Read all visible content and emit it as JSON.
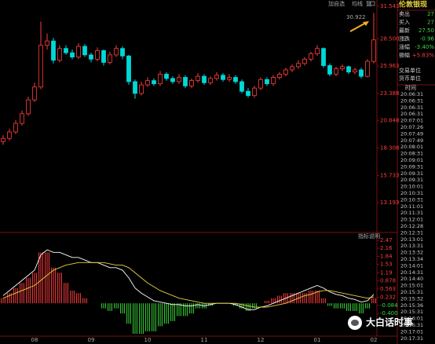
{
  "chart_data": {
    "type": "candlestick",
    "toolbar": [
      "加自选",
      "均线",
      "复"
    ],
    "annotation": "30.922",
    "up_color": "#ff3c3c",
    "down_color": "#00d8d8",
    "ylim": [
      10.48,
      32.13
    ],
    "yticks": [
      31.543,
      {
        "value": 28.5,
        "label": "28.500"
      },
      25.963,
      23.388,
      20.848,
      18.308,
      15.733,
      13.193
    ],
    "categories": [
      null,
      null,
      null,
      null,
      null,
      "08",
      null,
      null,
      null,
      null,
      null,
      null,
      null,
      null,
      "09",
      null,
      null,
      null,
      null,
      null,
      null,
      null,
      null,
      "10",
      null,
      null,
      null,
      null,
      null,
      null,
      null,
      null,
      "11",
      null,
      null,
      null,
      null,
      null,
      null,
      null,
      null,
      "12",
      null,
      null,
      null,
      null,
      null,
      null,
      null,
      null,
      "01",
      null,
      null,
      null,
      null,
      null,
      null,
      null,
      null,
      "02"
    ],
    "open": [
      18.9,
      19.2,
      19.8,
      20.6,
      21.5,
      22.8,
      24.0,
      27.9,
      28.3,
      26.5,
      27.6,
      27.2,
      26.8,
      27.8,
      27.0,
      26.6,
      27.4,
      26.3,
      27.0,
      27.6,
      26.9,
      24.5,
      23.4,
      24.2,
      24.6,
      24.3,
      25.2,
      24.8,
      24.5,
      24.9,
      24.1,
      24.6,
      25.0,
      24.4,
      24.8,
      25.1,
      24.7,
      24.9,
      24.5,
      23.6,
      23.2,
      23.9,
      24.7,
      24.3,
      24.9,
      25.2,
      25.6,
      25.9,
      26.2,
      26.6,
      27.1,
      27.6,
      26.0,
      25.2,
      25.7,
      25.9,
      25.4,
      25.6,
      25.0,
      26.4
    ],
    "high": [
      19.5,
      20.1,
      20.9,
      21.8,
      23.1,
      24.4,
      30.1,
      29.0,
      28.6,
      27.9,
      27.9,
      27.5,
      28.1,
      28.0,
      27.2,
      27.7,
      27.5,
      27.3,
      27.9,
      27.8,
      27.0,
      24.7,
      24.5,
      24.9,
      24.8,
      25.5,
      25.4,
      25.0,
      25.2,
      25.1,
      24.8,
      25.3,
      25.2,
      25.0,
      25.4,
      25.3,
      25.2,
      25.1,
      24.7,
      23.9,
      24.1,
      24.9,
      24.9,
      25.1,
      25.4,
      25.8,
      26.1,
      26.5,
      26.8,
      27.3,
      27.9,
      27.7,
      26.2,
      25.9,
      26.1,
      26.0,
      25.8,
      25.8,
      26.6,
      30.922
    ],
    "low": [
      18.6,
      19.0,
      19.6,
      20.4,
      21.3,
      22.6,
      23.8,
      27.5,
      26.2,
      26.3,
      27.0,
      26.6,
      26.6,
      26.8,
      26.3,
      26.4,
      26.0,
      26.1,
      26.8,
      26.6,
      24.2,
      22.9,
      23.2,
      24.0,
      24.1,
      24.1,
      24.6,
      24.3,
      24.3,
      23.9,
      23.9,
      24.4,
      24.2,
      24.2,
      24.6,
      24.5,
      24.5,
      24.3,
      23.4,
      23.0,
      23.0,
      23.7,
      24.1,
      24.1,
      24.7,
      25.0,
      25.4,
      25.7,
      26.0,
      26.4,
      26.9,
      25.8,
      25.0,
      25.0,
      25.5,
      25.2,
      25.2,
      24.8,
      24.9,
      26.2
    ],
    "close": [
      19.2,
      19.8,
      20.6,
      21.5,
      22.8,
      24.0,
      27.9,
      28.3,
      26.5,
      27.6,
      27.2,
      26.8,
      27.8,
      27.0,
      26.6,
      27.4,
      26.3,
      27.0,
      27.6,
      26.9,
      24.5,
      23.4,
      24.2,
      24.6,
      24.3,
      25.2,
      24.8,
      24.5,
      24.9,
      24.1,
      24.6,
      25.0,
      24.4,
      24.8,
      25.1,
      24.7,
      24.9,
      24.5,
      23.6,
      23.2,
      23.9,
      24.7,
      24.3,
      24.9,
      25.2,
      25.6,
      25.9,
      26.2,
      26.6,
      27.1,
      27.6,
      26.0,
      25.2,
      25.7,
      25.9,
      25.4,
      25.6,
      25.0,
      26.4,
      28.4
    ],
    "indicator": {
      "type": "macd",
      "label": "指标说明",
      "ylim": [
        -1.29,
        2.72
      ],
      "yticks": [
        2.47,
        2.16,
        1.84,
        1.53,
        1.19,
        0.878,
        0.563,
        0.232,
        -0.084,
        {
          "value": -0.4,
          "label": "-0.400"
        }
      ],
      "dif_color": "#ffffff",
      "dea_color": "#e8d040",
      "dif": [
        0.3,
        0.5,
        0.7,
        0.9,
        1.1,
        1.3,
        1.9,
        2.1,
        2.0,
        2.0,
        1.9,
        1.8,
        1.8,
        1.7,
        1.6,
        1.6,
        1.5,
        1.4,
        1.4,
        1.3,
        1.0,
        0.6,
        0.4,
        0.25,
        0.1,
        0.05,
        0.0,
        -0.05,
        -0.05,
        -0.1,
        -0.1,
        -0.05,
        -0.1,
        -0.05,
        0.0,
        0.0,
        0.0,
        -0.05,
        -0.15,
        -0.25,
        -0.25,
        -0.15,
        -0.1,
        0.0,
        0.1,
        0.2,
        0.3,
        0.4,
        0.5,
        0.6,
        0.7,
        0.6,
        0.45,
        0.35,
        0.3,
        0.2,
        0.15,
        0.05,
        0.1,
        0.35
      ],
      "dea": [
        0.2,
        0.3,
        0.4,
        0.5,
        0.6,
        0.7,
        0.9,
        1.1,
        1.3,
        1.4,
        1.5,
        1.55,
        1.6,
        1.6,
        1.6,
        1.6,
        1.6,
        1.55,
        1.5,
        1.5,
        1.4,
        1.2,
        1.0,
        0.8,
        0.65,
        0.5,
        0.4,
        0.3,
        0.2,
        0.15,
        0.1,
        0.05,
        0.0,
        0.0,
        0.0,
        0.0,
        0.0,
        0.0,
        -0.05,
        -0.1,
        -0.15,
        -0.15,
        -0.15,
        -0.1,
        -0.05,
        0.0,
        0.1,
        0.2,
        0.3,
        0.35,
        0.45,
        0.5,
        0.5,
        0.45,
        0.4,
        0.35,
        0.3,
        0.25,
        0.2,
        0.25
      ],
      "hist": [
        0.2,
        0.4,
        0.6,
        0.8,
        1.0,
        1.2,
        2.0,
        2.0,
        1.4,
        1.2,
        0.8,
        0.5,
        0.4,
        0.2,
        0.0,
        0.0,
        -0.2,
        -0.3,
        -0.2,
        -0.4,
        -0.8,
        -1.2,
        -1.2,
        -1.1,
        -1.1,
        -0.9,
        -0.8,
        -0.7,
        -0.5,
        -0.5,
        -0.4,
        -0.2,
        -0.2,
        -0.1,
        0,
        0,
        0,
        -0.1,
        -0.2,
        -0.3,
        -0.2,
        0.0,
        0.1,
        0.2,
        0.3,
        0.4,
        0.4,
        0.4,
        0.4,
        0.5,
        0.5,
        0.2,
        -0.1,
        -0.2,
        -0.2,
        -0.3,
        -0.3,
        -0.4,
        -0.2,
        0.2
      ]
    }
  },
  "quote_panel": {
    "title": "伦敦银现",
    "rows": [
      {
        "label": "卖出",
        "value": "27",
        "color": "#3ad83a"
      },
      {
        "label": "买入",
        "value": "27",
        "color": "#3ad83a"
      },
      {
        "label": "最新",
        "value": "27.50",
        "color": "#3ad83a"
      },
      {
        "label": "涨跌",
        "value": "-0.96",
        "color": "#3ad83a"
      },
      {
        "label": "涨幅",
        "value": "-3.40%",
        "color": "#3ad83a"
      },
      {
        "label": "振幅",
        "value": "+5.83%",
        "color": "#ff3c3c"
      }
    ],
    "units": [
      "交易单位",
      "货币单位"
    ],
    "time_header": "时间",
    "times": [
      "20:06:31",
      "20:06:31",
      "20:06:31",
      "20:06:31",
      "20:07:01",
      "20:07:26",
      "20:07:49",
      "20:07:49",
      "20:08:01",
      "20:08:31",
      "20:09:01",
      "20:09:31",
      "20:09:31",
      "20:09:31",
      "20:10:01",
      "20:10:31",
      "20:10:31",
      "20:11:01",
      "20:11:31",
      "20:12:01",
      "20:12:28",
      "20:12:31",
      "20:13:01",
      "20:13:31",
      "20:13:32",
      "20:13:34",
      "20:14:01",
      "20:14:31",
      "20:14:40",
      "20:15:01",
      "20:15:31",
      "20:15:32",
      "20:15:36",
      "20:15:31",
      "20:16:01",
      "20:16:31",
      "20:17:01",
      "20:17:31"
    ]
  },
  "watermark": "大白话时事"
}
